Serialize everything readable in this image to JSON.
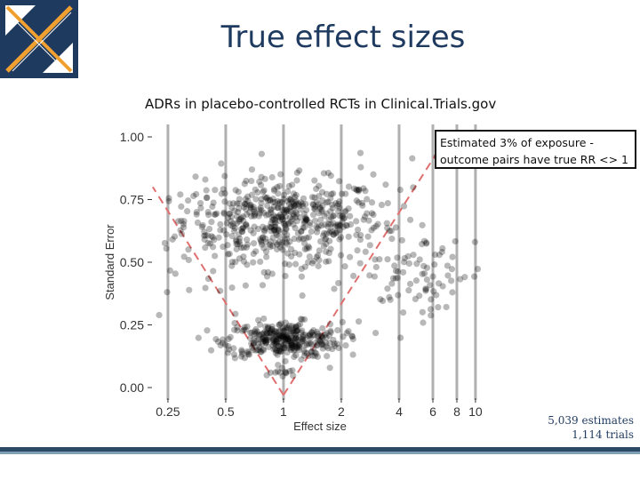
{
  "slide": {
    "title": "True effect sizes",
    "subtitle": "ADRs in placebo-controlled RCTs in Clinical.Trials.gov",
    "callout": "Estimated 3% of exposure - outcome pairs have true RR <> 1",
    "count_estimates": "5,039 estimates",
    "count_trials": "1,114 trials"
  },
  "colors": {
    "title": "#1e3a5f",
    "points": "#000000",
    "dashed": "#e07070",
    "logo_navy": "#1e3a5f",
    "logo_orange": "#f0a030",
    "footer": "#2a4a66"
  },
  "icons": {
    "logo": "ohdsi-logo-icon"
  },
  "chart_data": {
    "type": "scatter",
    "title": "",
    "xlabel": "Effect size",
    "ylabel": "Standard Error",
    "x_scale": "log",
    "xlim": [
      0.2,
      12
    ],
    "ylim": [
      0,
      1
    ],
    "x_ticks": [
      0.25,
      0.5,
      1,
      2,
      4,
      6,
      8,
      10
    ],
    "x_tick_labels": [
      "0.25",
      "0.5",
      "1",
      "2",
      "4",
      "6",
      "8",
      "10"
    ],
    "y_ticks": [
      0,
      0.25,
      0.5,
      0.75,
      1
    ],
    "y_tick_labels": [
      "0.00",
      "0.25",
      "0.50",
      "0.75",
      "1.00"
    ],
    "vertical_reference_lines": [
      0.25,
      0.5,
      1,
      2,
      4,
      6,
      8,
      10
    ],
    "dashed_funnel": "se = |ln(x)| / 1.96",
    "grid": false,
    "point_clusters": [
      {
        "x_center": 1.0,
        "x_spread_log": 0.6,
        "se_center": 0.67,
        "se_spread": 0.08,
        "count": 480
      },
      {
        "x_center": 1.0,
        "x_spread_log": 0.35,
        "se_center": 0.19,
        "se_spread": 0.035,
        "count": 320
      },
      {
        "x_center": 1.0,
        "x_spread_log": 0.08,
        "se_center": 0.06,
        "se_spread": 0.01,
        "count": 12
      },
      {
        "x_center": 1.0,
        "x_spread_log": 1.1,
        "se_center": 0.55,
        "se_spread": 0.18,
        "count": 140
      },
      {
        "x_center": 5.0,
        "x_spread_log": 0.45,
        "se_center": 0.45,
        "se_spread": 0.08,
        "count": 70
      }
    ]
  }
}
